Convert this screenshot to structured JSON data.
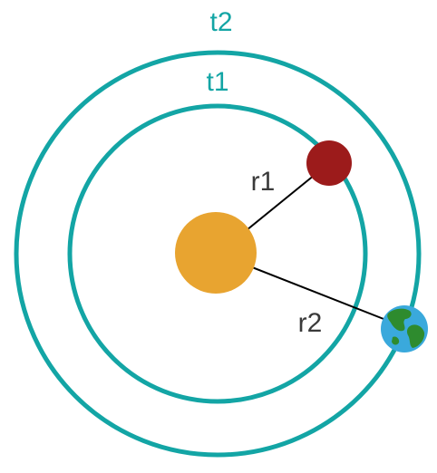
{
  "diagram": {
    "outer_orbit_label": "t2",
    "inner_orbit_label": "t1",
    "inner_radius_label": "r1",
    "outer_radius_label": "r2"
  },
  "colors": {
    "orbit": "#13a5a5",
    "sun": "#e8a430",
    "inner_planet": "#9c1b1b",
    "earth_ocean": "#3aa9dc",
    "earth_land": "#2e8b2e",
    "radius_line": "#000000",
    "radius_text": "#3a3a3a"
  },
  "icons": {
    "sun": "sun-icon",
    "inner_planet": "planet-icon",
    "earth": "earth-icon"
  }
}
